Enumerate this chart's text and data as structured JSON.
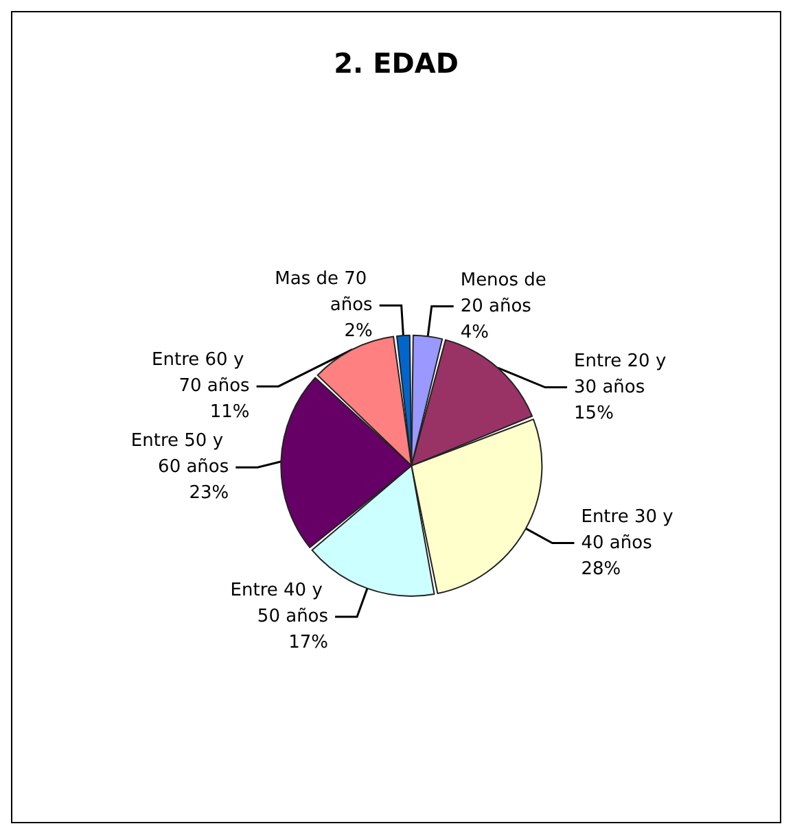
{
  "chart_data": {
    "type": "pie",
    "title": "2. EDAD",
    "categories": [
      "Menos de 20 años",
      "Entre 20 y 30 años",
      "Entre 30 y 40 años",
      "Entre 40 y 50 años",
      "Entre 50 y 60 años",
      "Entre 60 y 70 años",
      "Mas de 70 años"
    ],
    "values": [
      4,
      15,
      28,
      17,
      23,
      11,
      2
    ],
    "value_labels": [
      "4%",
      "15%",
      "28%",
      "17%",
      "23%",
      "11%",
      "2%"
    ],
    "colors": [
      "#9999ff",
      "#993366",
      "#ffffcc",
      "#ccffff",
      "#660066",
      "#ff8080",
      "#0066cc"
    ]
  }
}
